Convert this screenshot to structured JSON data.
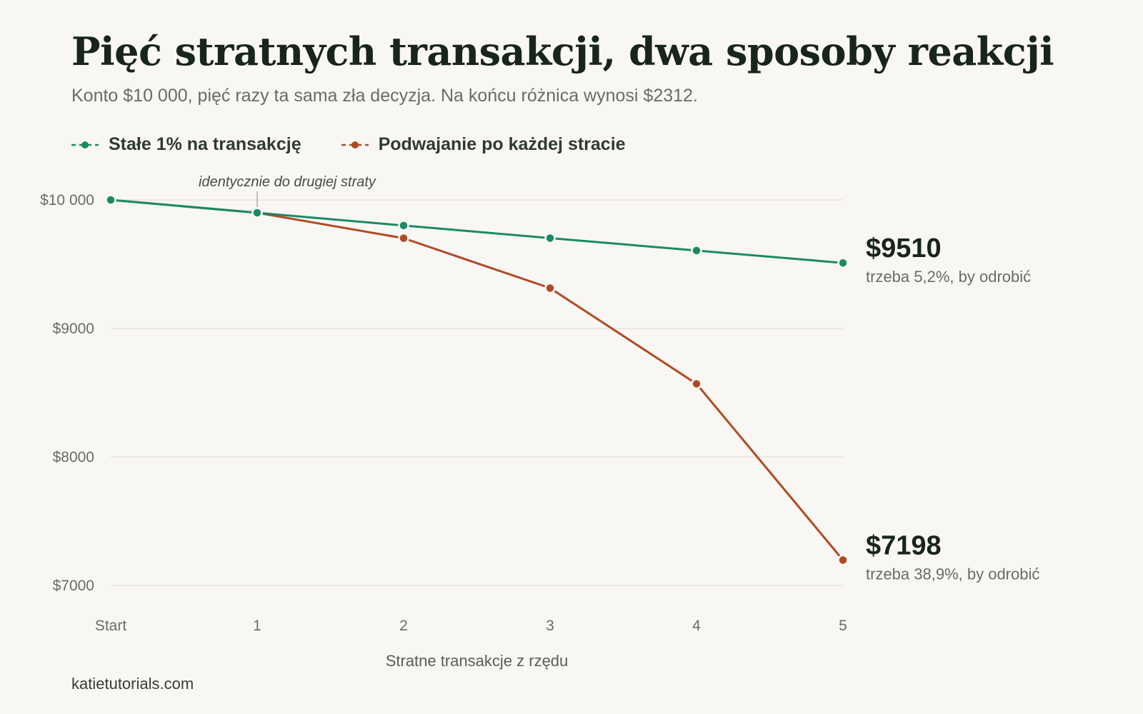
{
  "header": {
    "title": "Pięć stratnych transakcji, dwa sposoby reakcji",
    "subtitle": "Konto $10 000, pięć razy ta sama zła decyzja. Na końcu różnica wynosi $2312."
  },
  "footer": {
    "source": "katietutorials.com"
  },
  "chart_data": {
    "type": "line",
    "title": "Pięć stratnych transakcji, dwa sposoby reakcji",
    "subtitle": "Konto $10 000, pięć razy ta sama zła decyzja. Na końcu różnica wynosi $2312.",
    "xlabel": "Stratne transakcje z rzędu",
    "ylabel": "",
    "categories": [
      "Start",
      "1",
      "2",
      "3",
      "4",
      "5"
    ],
    "ylim": [
      7000,
      10000
    ],
    "yticks": [
      {
        "value": 10000,
        "label": "$10 000"
      },
      {
        "value": 9000,
        "label": "$9000"
      },
      {
        "value": 8000,
        "label": "$8000"
      },
      {
        "value": 7000,
        "label": "$7000"
      }
    ],
    "grid": true,
    "legend_position": "top-left",
    "series": [
      {
        "name": "Stałe 1% na transakcję",
        "color": "#1a8a66",
        "values": [
          10000,
          9900,
          9801,
          9703,
          9606,
          9510
        ],
        "end_label": "$9510",
        "end_note": "trzeba 5,2%, by odrobić"
      },
      {
        "name": "Podwajanie po każdej stracie",
        "color": "#b04a24",
        "values": [
          10000,
          9900,
          9702,
          9314,
          8569,
          7198
        ],
        "end_label": "$7198",
        "end_note": "trzeba 38,9%, by odrobić"
      }
    ],
    "annotations": [
      {
        "text": "identycznie do drugiej straty",
        "at_category": "1"
      }
    ]
  }
}
